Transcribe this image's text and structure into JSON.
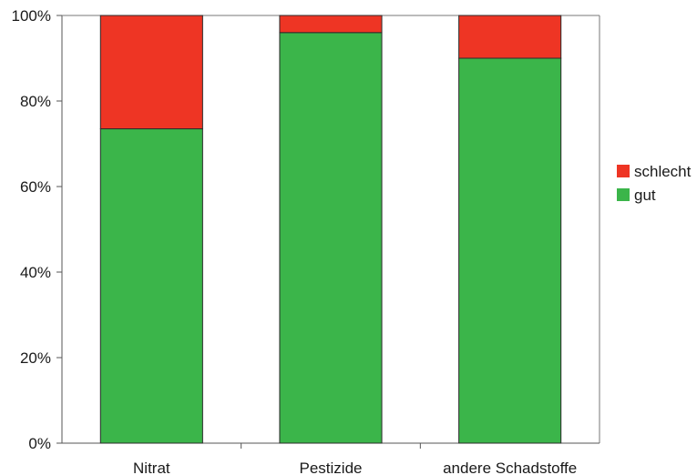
{
  "chart_data": {
    "type": "bar",
    "stacked": true,
    "normalized": true,
    "categories": [
      "Nitrat",
      "Pestizide",
      "andere Schadstoffe"
    ],
    "series": [
      {
        "name": "gut",
        "values": [
          73.5,
          96,
          90
        ],
        "color": "#3bb54a"
      },
      {
        "name": "schlecht",
        "values": [
          26.5,
          4,
          10
        ],
        "color": "#ee3524"
      }
    ],
    "ylim": [
      0,
      100
    ],
    "yticks": [
      "0%",
      "20%",
      "40%",
      "60%",
      "80%",
      "100%"
    ],
    "legend_order": [
      "schlecht",
      "gut"
    ],
    "legend_position": "right",
    "grid": false
  }
}
